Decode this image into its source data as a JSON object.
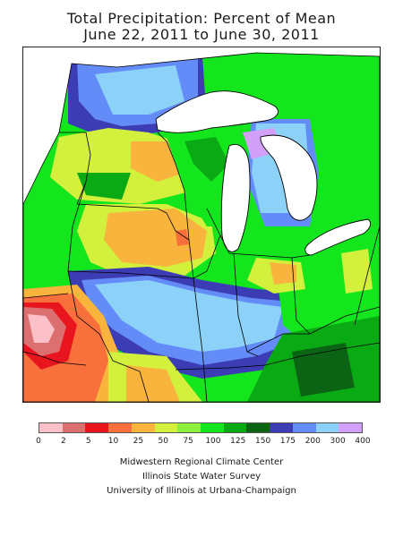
{
  "title": {
    "line1": "Total Precipitation: Percent of Mean",
    "line2": "June 22, 2011 to June 30, 2011"
  },
  "legend": {
    "breaks": [
      "0",
      "2",
      "5",
      "10",
      "25",
      "50",
      "75",
      "100",
      "125",
      "150",
      "175",
      "200",
      "300",
      "400"
    ],
    "colors": [
      "#fbc0c8",
      "#dc7070",
      "#e8141e",
      "#f8703c",
      "#f8b43c",
      "#d2f03c",
      "#8cf03c",
      "#14e61e",
      "#0aaa14",
      "#0a6414",
      "#3c3cb4",
      "#648cf8",
      "#8cd2f8",
      "#d2a0f8"
    ]
  },
  "map": {
    "colors": {
      "water": "#ffffff",
      "background": "#ffffff",
      "outline": "#000000"
    }
  },
  "credits": {
    "line1": "Midwestern Regional Climate Center",
    "line2": "Illinois State Water Survey",
    "line3": "University of Illinois at Urbana-Champaign"
  }
}
